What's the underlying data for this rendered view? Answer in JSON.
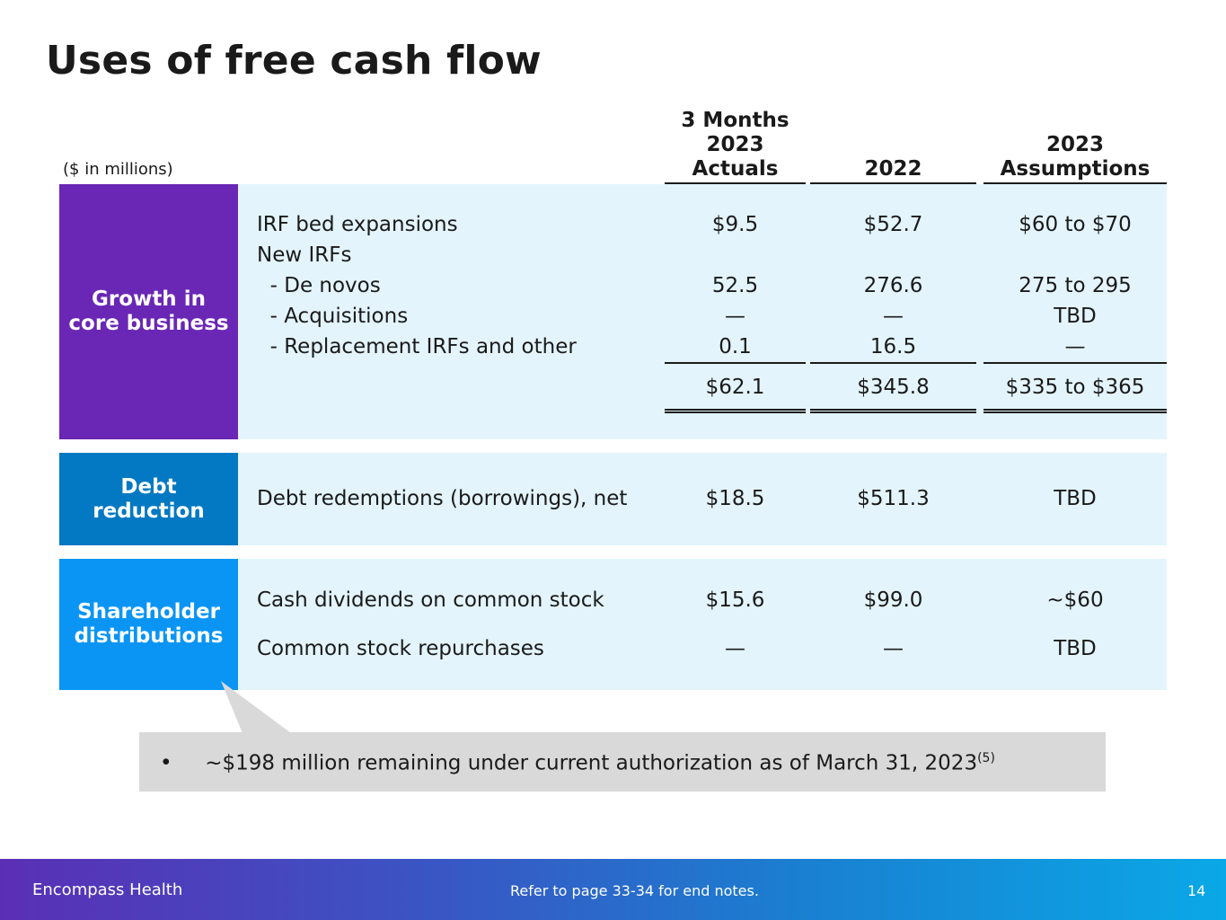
{
  "title": "Uses of free cash flow",
  "units_note": "($ in millions)",
  "columns": {
    "c1": "3 Months\n2023\nActuals",
    "c2": "2022",
    "c3": "2023\nAssumptions"
  },
  "sections": {
    "growth": {
      "label": "Growth in\ncore business",
      "color": "#6a27b5",
      "rows": [
        {
          "label": "IRF bed expansions",
          "c1": "$9.5",
          "c2": "$52.7",
          "c3": "$60 to $70"
        },
        {
          "label": "New IRFs",
          "c1": "",
          "c2": "",
          "c3": ""
        },
        {
          "label": "  - De novos",
          "c1": "52.5",
          "c2": "276.6",
          "c3": "275 to 295"
        },
        {
          "label": "  - Acquisitions",
          "c1": "—",
          "c2": "—",
          "c3": "TBD"
        },
        {
          "label": "  - Replacement IRFs and other",
          "c1": "0.1",
          "c2": "16.5",
          "c3": "—"
        }
      ],
      "total": {
        "c1": "$62.1",
        "c2": "$345.8",
        "c3": "$335 to $365"
      }
    },
    "debt": {
      "label": "Debt\nreduction",
      "color": "#0279c2",
      "rows": [
        {
          "label": "Debt redemptions (borrowings), net",
          "c1": "$18.5",
          "c2": "$511.3",
          "c3": "TBD"
        }
      ]
    },
    "shareholder": {
      "label": "Shareholder\ndistributions",
      "color": "#0a95f5",
      "rows": [
        {
          "label": "Cash dividends on common stock",
          "c1": "$15.6",
          "c2": "$99.0",
          "c3": "~$60"
        },
        {
          "label": "Common stock repurchases",
          "c1": "—",
          "c2": "—",
          "c3": "TBD"
        }
      ]
    }
  },
  "callout": {
    "bullet": "•",
    "text": "~$198 million remaining under current authorization as of March 31, 2023",
    "footnote": "(5)"
  },
  "footer": {
    "company": "Encompass Health",
    "note": "Refer to page 33-34 for end notes.",
    "page": "14"
  }
}
